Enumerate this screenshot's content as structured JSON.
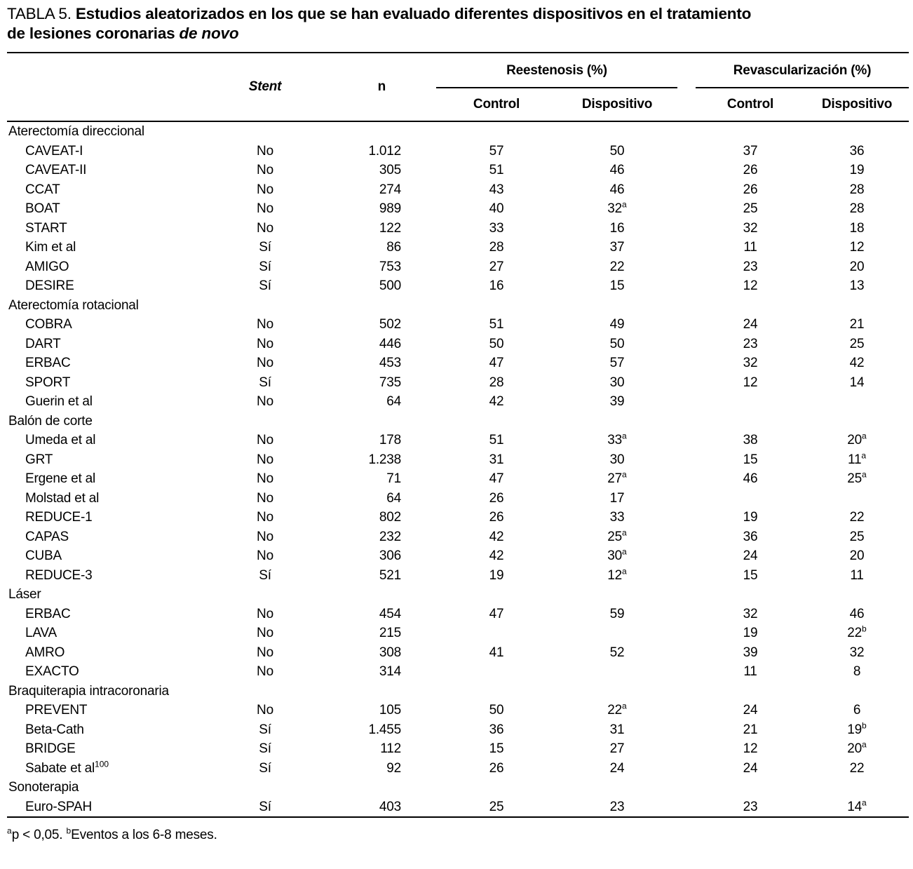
{
  "title": {
    "prefix": "TABLA 5. ",
    "bold1": "Estudios aleatorizados en los que se han evaluado diferentes dispositivos en el tratamiento",
    "bold2": "de lesiones coronarias ",
    "italic": "de novo"
  },
  "header": {
    "stent": "Stent",
    "n": "n",
    "group1": "Reestenosis (%)",
    "group2": "Revascularización (%)",
    "sub1": "Control",
    "sub2": "Dispositivo",
    "sub3": "Control",
    "sub4": "Dispositivo"
  },
  "table": {
    "sections": [
      {
        "heading": "Aterectomía direccional",
        "rows": [
          {
            "study": "CAVEAT-I",
            "study_sup": "",
            "stent": "No",
            "n": "1.012",
            "vals": [
              {
                "v": "57",
                "s": ""
              },
              {
                "v": "50",
                "s": ""
              },
              {
                "v": "37",
                "s": ""
              },
              {
                "v": "36",
                "s": ""
              }
            ]
          },
          {
            "study": "CAVEAT-II",
            "study_sup": "",
            "stent": "No",
            "n": "305",
            "vals": [
              {
                "v": "51",
                "s": ""
              },
              {
                "v": "46",
                "s": ""
              },
              {
                "v": "26",
                "s": ""
              },
              {
                "v": "19",
                "s": ""
              }
            ]
          },
          {
            "study": "CCAT",
            "study_sup": "",
            "stent": "No",
            "n": "274",
            "vals": [
              {
                "v": "43",
                "s": ""
              },
              {
                "v": "46",
                "s": ""
              },
              {
                "v": "26",
                "s": ""
              },
              {
                "v": "28",
                "s": ""
              }
            ]
          },
          {
            "study": "BOAT",
            "study_sup": "",
            "stent": "No",
            "n": "989",
            "vals": [
              {
                "v": "40",
                "s": ""
              },
              {
                "v": "32",
                "s": "a"
              },
              {
                "v": "25",
                "s": ""
              },
              {
                "v": "28",
                "s": ""
              }
            ]
          },
          {
            "study": "START",
            "study_sup": "",
            "stent": "No",
            "n": "122",
            "vals": [
              {
                "v": "33",
                "s": ""
              },
              {
                "v": "16",
                "s": ""
              },
              {
                "v": "32",
                "s": ""
              },
              {
                "v": "18",
                "s": ""
              }
            ]
          },
          {
            "study": "Kim et al",
            "study_sup": "",
            "stent": "Sí",
            "n": "86",
            "vals": [
              {
                "v": "28",
                "s": ""
              },
              {
                "v": "37",
                "s": ""
              },
              {
                "v": "11",
                "s": ""
              },
              {
                "v": "12",
                "s": ""
              }
            ]
          },
          {
            "study": "AMIGO",
            "study_sup": "",
            "stent": "Sí",
            "n": "753",
            "vals": [
              {
                "v": "27",
                "s": ""
              },
              {
                "v": "22",
                "s": ""
              },
              {
                "v": "23",
                "s": ""
              },
              {
                "v": "20",
                "s": ""
              }
            ]
          },
          {
            "study": "DESIRE",
            "study_sup": "",
            "stent": "Sí",
            "n": "500",
            "vals": [
              {
                "v": "16",
                "s": ""
              },
              {
                "v": "15",
                "s": ""
              },
              {
                "v": "12",
                "s": ""
              },
              {
                "v": "13",
                "s": ""
              }
            ]
          }
        ]
      },
      {
        "heading": "Aterectomía rotacional",
        "rows": [
          {
            "study": "COBRA",
            "study_sup": "",
            "stent": "No",
            "n": "502",
            "vals": [
              {
                "v": "51",
                "s": ""
              },
              {
                "v": "49",
                "s": ""
              },
              {
                "v": "24",
                "s": ""
              },
              {
                "v": "21",
                "s": ""
              }
            ]
          },
          {
            "study": "DART",
            "study_sup": "",
            "stent": "No",
            "n": "446",
            "vals": [
              {
                "v": "50",
                "s": ""
              },
              {
                "v": "50",
                "s": ""
              },
              {
                "v": "23",
                "s": ""
              },
              {
                "v": "25",
                "s": ""
              }
            ]
          },
          {
            "study": "ERBAC",
            "study_sup": "",
            "stent": "No",
            "n": "453",
            "vals": [
              {
                "v": "47",
                "s": ""
              },
              {
                "v": "57",
                "s": ""
              },
              {
                "v": "32",
                "s": ""
              },
              {
                "v": "42",
                "s": ""
              }
            ]
          },
          {
            "study": "SPORT",
            "study_sup": "",
            "stent": "Sí",
            "n": "735",
            "vals": [
              {
                "v": "28",
                "s": ""
              },
              {
                "v": "30",
                "s": ""
              },
              {
                "v": "12",
                "s": ""
              },
              {
                "v": "14",
                "s": ""
              }
            ]
          },
          {
            "study": "Guerin et al",
            "study_sup": "",
            "stent": "No",
            "n": "64",
            "vals": [
              {
                "v": "42",
                "s": ""
              },
              {
                "v": "39",
                "s": ""
              },
              {
                "v": "",
                "s": ""
              },
              {
                "v": "",
                "s": ""
              }
            ]
          }
        ]
      },
      {
        "heading": "Balón de corte",
        "rows": [
          {
            "study": "Umeda et al",
            "study_sup": "",
            "stent": "No",
            "n": "178",
            "vals": [
              {
                "v": "51",
                "s": ""
              },
              {
                "v": "33",
                "s": "a"
              },
              {
                "v": "38",
                "s": ""
              },
              {
                "v": "20",
                "s": "a"
              }
            ]
          },
          {
            "study": "GRT",
            "study_sup": "",
            "stent": "No",
            "n": "1.238",
            "vals": [
              {
                "v": "31",
                "s": ""
              },
              {
                "v": "30",
                "s": ""
              },
              {
                "v": "15",
                "s": ""
              },
              {
                "v": "11",
                "s": "a"
              }
            ]
          },
          {
            "study": "Ergene et al",
            "study_sup": "",
            "stent": "No",
            "n": "71",
            "vals": [
              {
                "v": "47",
                "s": ""
              },
              {
                "v": "27",
                "s": "a"
              },
              {
                "v": "46",
                "s": ""
              },
              {
                "v": "25",
                "s": "a"
              }
            ]
          },
          {
            "study": "Molstad et al",
            "study_sup": "",
            "stent": "No",
            "n": "64",
            "vals": [
              {
                "v": "26",
                "s": ""
              },
              {
                "v": "17",
                "s": ""
              },
              {
                "v": "",
                "s": ""
              },
              {
                "v": "",
                "s": ""
              }
            ]
          },
          {
            "study": "REDUCE-1",
            "study_sup": "",
            "stent": "No",
            "n": "802",
            "vals": [
              {
                "v": "26",
                "s": ""
              },
              {
                "v": "33",
                "s": ""
              },
              {
                "v": "19",
                "s": ""
              },
              {
                "v": "22",
                "s": ""
              }
            ]
          },
          {
            "study": "CAPAS",
            "study_sup": "",
            "stent": "No",
            "n": "232",
            "vals": [
              {
                "v": "42",
                "s": ""
              },
              {
                "v": "25",
                "s": "a"
              },
              {
                "v": "36",
                "s": ""
              },
              {
                "v": "25",
                "s": ""
              }
            ]
          },
          {
            "study": "CUBA",
            "study_sup": "",
            "stent": "No",
            "n": "306",
            "vals": [
              {
                "v": "42",
                "s": ""
              },
              {
                "v": "30",
                "s": "a"
              },
              {
                "v": "24",
                "s": ""
              },
              {
                "v": "20",
                "s": ""
              }
            ]
          },
          {
            "study": "REDUCE-3",
            "study_sup": "",
            "stent": "Sí",
            "n": "521",
            "vals": [
              {
                "v": "19",
                "s": ""
              },
              {
                "v": "12",
                "s": "a"
              },
              {
                "v": "15",
                "s": ""
              },
              {
                "v": "11",
                "s": ""
              }
            ]
          }
        ]
      },
      {
        "heading": "Láser",
        "rows": [
          {
            "study": "ERBAC",
            "study_sup": "",
            "stent": "No",
            "n": "454",
            "vals": [
              {
                "v": "47",
                "s": ""
              },
              {
                "v": "59",
                "s": ""
              },
              {
                "v": "32",
                "s": ""
              },
              {
                "v": "46",
                "s": ""
              }
            ]
          },
          {
            "study": "LAVA",
            "study_sup": "",
            "stent": "No",
            "n": "215",
            "vals": [
              {
                "v": "",
                "s": ""
              },
              {
                "v": "",
                "s": ""
              },
              {
                "v": "19",
                "s": ""
              },
              {
                "v": "22",
                "s": "b"
              }
            ]
          },
          {
            "study": "AMRO",
            "study_sup": "",
            "stent": "No",
            "n": "308",
            "vals": [
              {
                "v": "41",
                "s": ""
              },
              {
                "v": "52",
                "s": ""
              },
              {
                "v": "39",
                "s": ""
              },
              {
                "v": "32",
                "s": ""
              }
            ]
          },
          {
            "study": "EXACTO",
            "study_sup": "",
            "stent": "No",
            "n": "314",
            "vals": [
              {
                "v": "",
                "s": ""
              },
              {
                "v": "",
                "s": ""
              },
              {
                "v": "11",
                "s": ""
              },
              {
                "v": "8",
                "s": ""
              }
            ]
          }
        ]
      },
      {
        "heading": "Braquiterapia intracoronaria",
        "rows": [
          {
            "study": "PREVENT",
            "study_sup": "",
            "stent": "No",
            "n": "105",
            "vals": [
              {
                "v": "50",
                "s": ""
              },
              {
                "v": "22",
                "s": "a"
              },
              {
                "v": "24",
                "s": ""
              },
              {
                "v": "6",
                "s": ""
              }
            ]
          },
          {
            "study": "Beta-Cath",
            "study_sup": "",
            "stent": "Sí",
            "n": "1.455",
            "vals": [
              {
                "v": "36",
                "s": ""
              },
              {
                "v": "31",
                "s": ""
              },
              {
                "v": "21",
                "s": ""
              },
              {
                "v": "19",
                "s": "b"
              }
            ]
          },
          {
            "study": "BRIDGE",
            "study_sup": "",
            "stent": "Sí",
            "n": "112",
            "vals": [
              {
                "v": "15",
                "s": ""
              },
              {
                "v": "27",
                "s": ""
              },
              {
                "v": "12",
                "s": ""
              },
              {
                "v": "20",
                "s": "a"
              }
            ]
          },
          {
            "study": "Sabate et al",
            "study_sup": "100",
            "stent": "Sí",
            "n": "92",
            "vals": [
              {
                "v": "26",
                "s": ""
              },
              {
                "v": "24",
                "s": ""
              },
              {
                "v": "24",
                "s": ""
              },
              {
                "v": "22",
                "s": ""
              }
            ]
          }
        ]
      },
      {
        "heading": "Sonoterapia",
        "rows": [
          {
            "study": "Euro-SPAH",
            "study_sup": "",
            "stent": "Sí",
            "n": "403",
            "vals": [
              {
                "v": "25",
                "s": ""
              },
              {
                "v": "23",
                "s": ""
              },
              {
                "v": "23",
                "s": ""
              },
              {
                "v": "14",
                "s": "a"
              }
            ]
          }
        ]
      }
    ]
  },
  "footnote": {
    "sup1": "a",
    "text1": "p < 0,05. ",
    "sup2": "b",
    "text2": "Eventos a los 6-8 meses."
  },
  "colors": {
    "background": "#ffffff",
    "text": "#000000",
    "rule": "#000000"
  }
}
